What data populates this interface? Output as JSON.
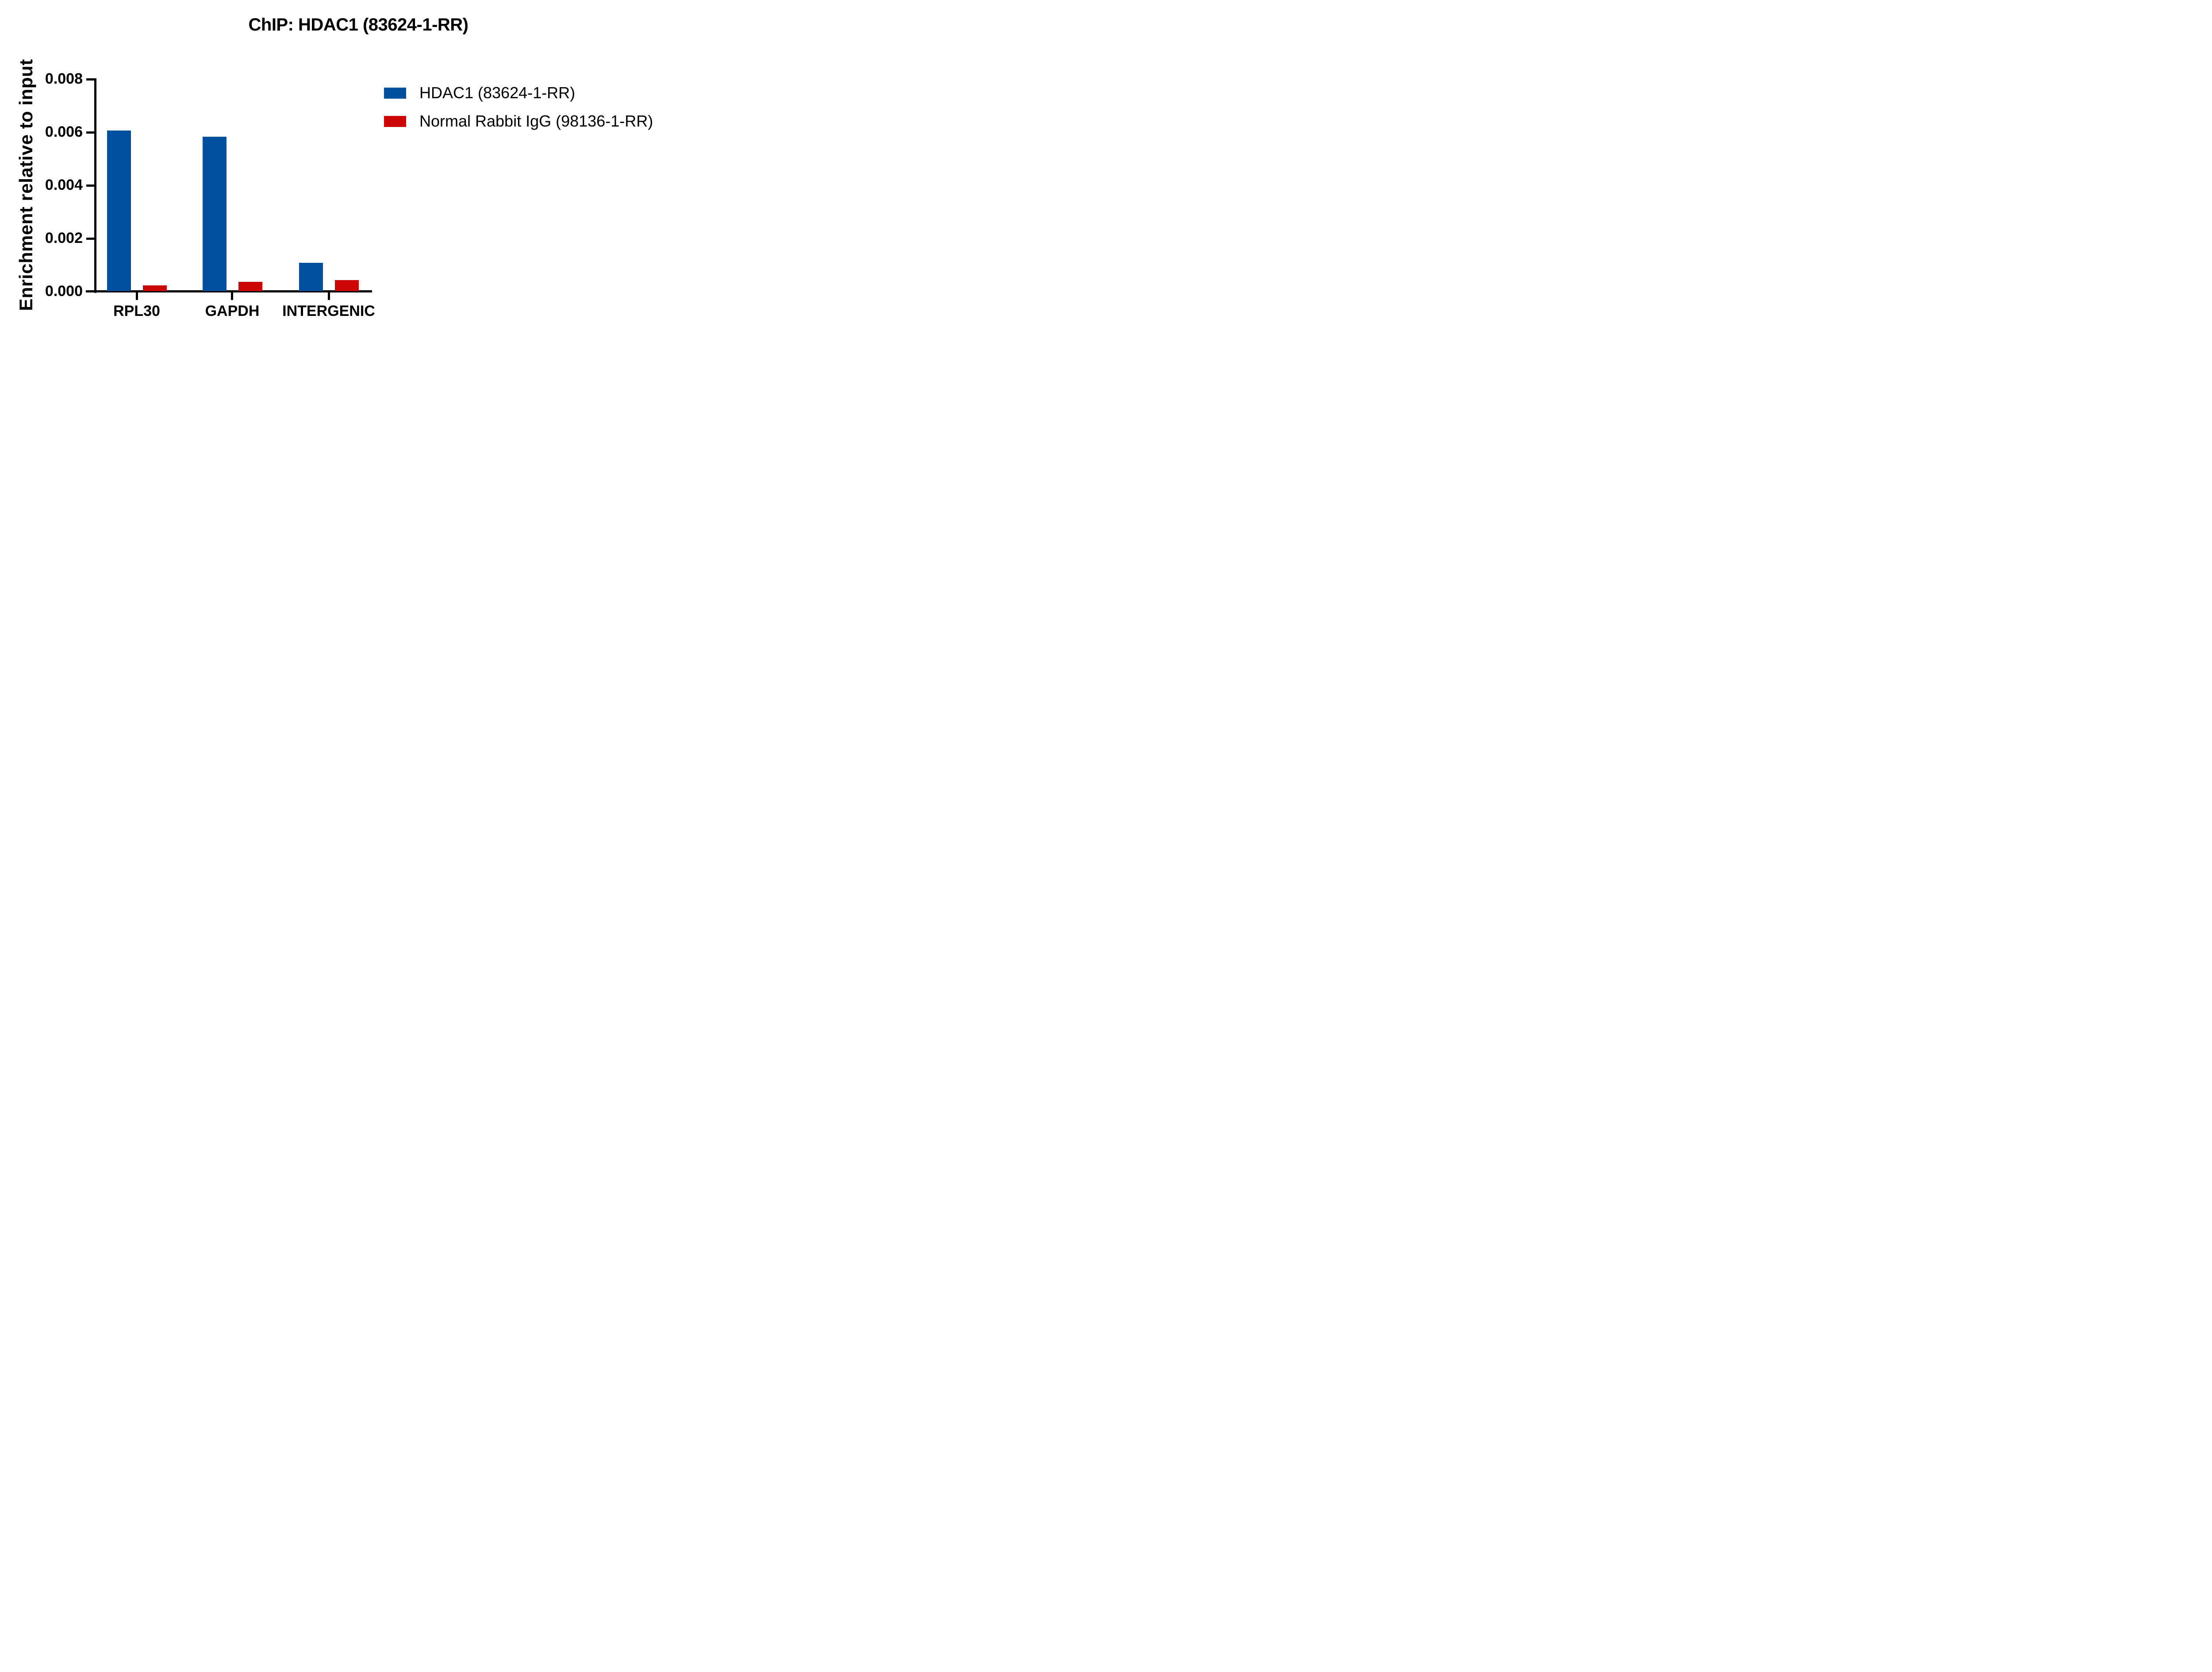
{
  "chart_data": {
    "type": "bar",
    "title": "ChIP: HDAC1 (83624-1-RR)",
    "xlabel": "",
    "ylabel": "Enrichment relative to input",
    "categories": [
      "RPL30",
      "GAPDH",
      "INTERGENIC"
    ],
    "series": [
      {
        "name": "HDAC1 (83624-1-RR)",
        "color": "#00509E",
        "values": [
          0.00605,
          0.00581,
          0.00106
        ]
      },
      {
        "name": "Normal Rabbit IgG (98136-1-RR)",
        "color": "#CC0505",
        "values": [
          0.00021,
          0.00035,
          0.00041
        ]
      }
    ],
    "ylim": [
      0,
      0.008
    ],
    "yticks": [
      "0.000",
      "0.002",
      "0.004",
      "0.006",
      "0.008"
    ],
    "grid": false,
    "legend_position": "right"
  }
}
